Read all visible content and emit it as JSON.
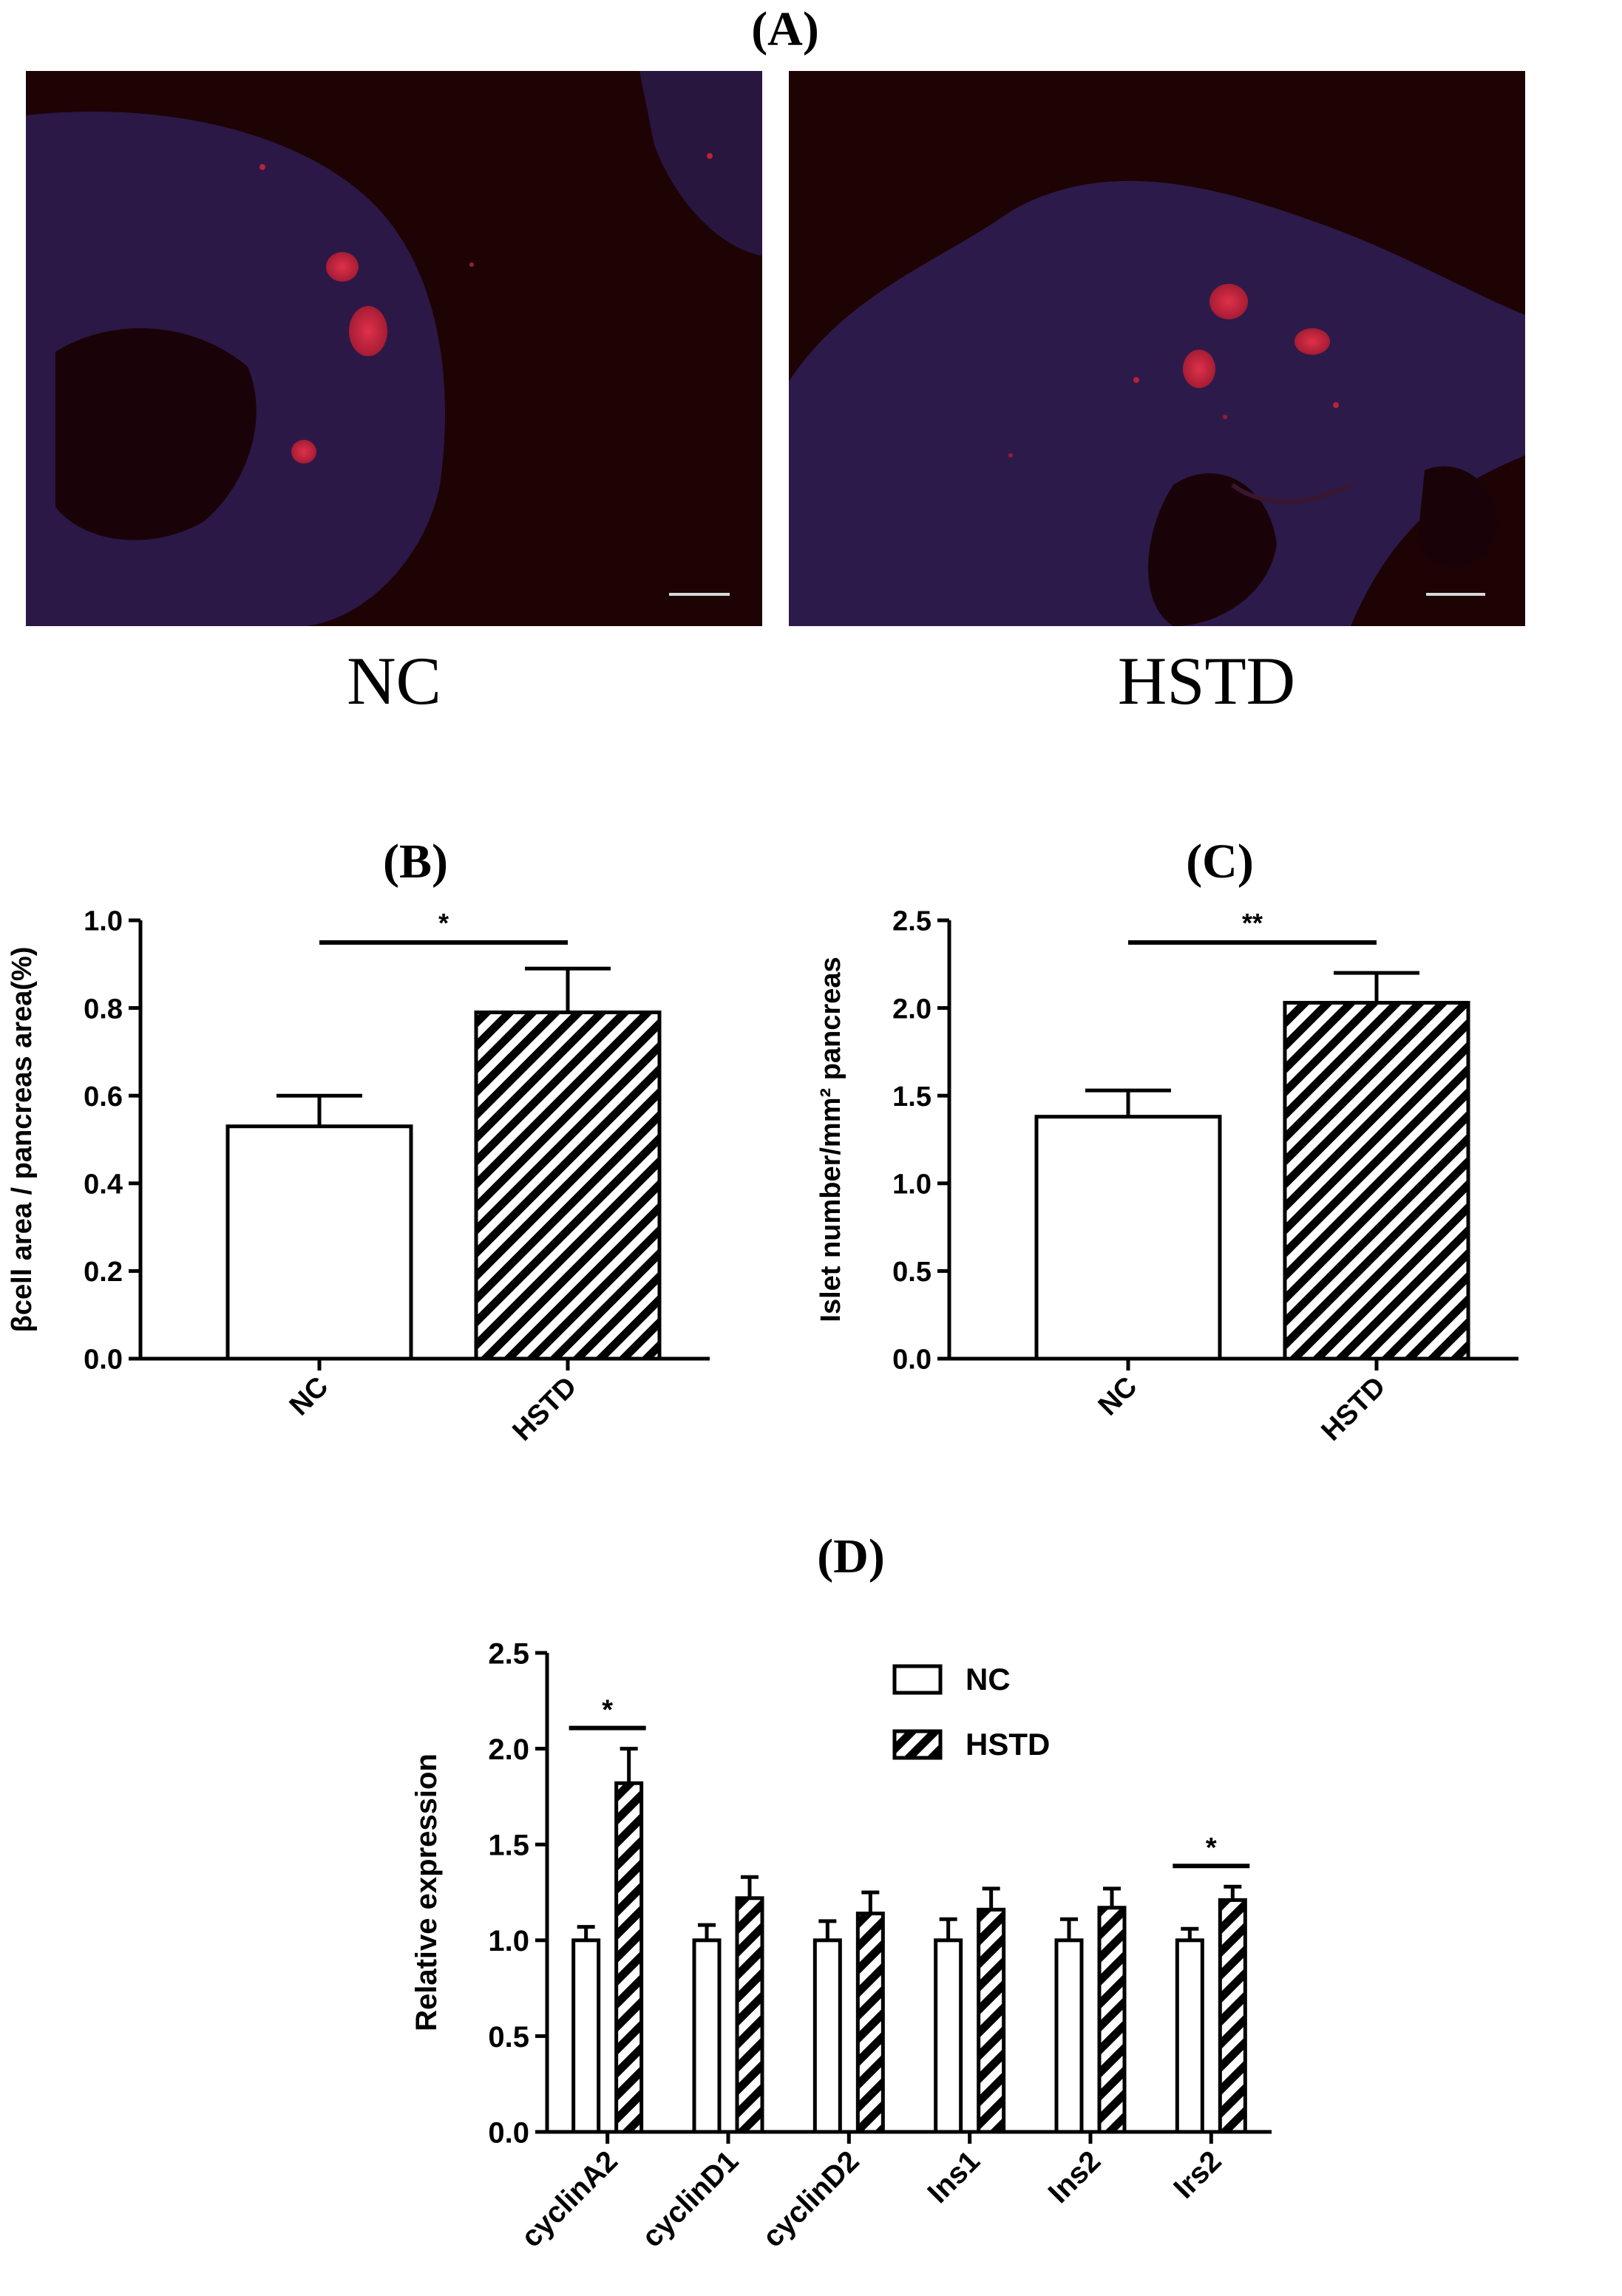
{
  "panel_labels": {
    "a": "(A)",
    "b": "(B)",
    "c": "(C)",
    "d": "(D)"
  },
  "micrographs": [
    {
      "caption": "NC"
    },
    {
      "caption": "HSTD"
    }
  ],
  "colors": {
    "bar_fill": "#ffffff",
    "bar_stroke": "#000000",
    "hatch": "#000000",
    "tissue_blue": "#3a2a6e",
    "islet_red": "#c2263e",
    "background_dark": "#1e0305"
  },
  "chart_data": [
    {
      "panel": "B",
      "type": "bar",
      "categories": [
        "NC",
        "HSTD"
      ],
      "values": [
        0.53,
        0.79
      ],
      "errors": [
        0.07,
        0.1
      ],
      "patterns": [
        "open",
        "hatched"
      ],
      "ylabel": "βcell area / pancreas area(%)",
      "ylim": [
        0,
        1.0
      ],
      "yticks": [
        "0.0",
        "0.2",
        "0.4",
        "0.6",
        "0.8",
        "1.0"
      ],
      "significance": {
        "from": 0,
        "to": 1,
        "label": "*"
      },
      "legend": "none",
      "grid": false
    },
    {
      "panel": "C",
      "type": "bar",
      "categories": [
        "NC",
        "HSTD"
      ],
      "values": [
        1.38,
        2.03
      ],
      "errors": [
        0.15,
        0.17
      ],
      "patterns": [
        "open",
        "hatched"
      ],
      "ylabel": "Islet number/mm² pancreas",
      "ylim": [
        0,
        2.5
      ],
      "yticks": [
        "0.0",
        "0.5",
        "1.0",
        "1.5",
        "2.0",
        "2.5"
      ],
      "significance": {
        "from": 0,
        "to": 1,
        "label": "**"
      },
      "legend": "none",
      "grid": false
    },
    {
      "panel": "D",
      "type": "bar",
      "categories": [
        "cyclinA2",
        "cyclinD1",
        "cyclinD2",
        "Ins1",
        "Ins2",
        "Irs2"
      ],
      "series": [
        {
          "name": "NC",
          "pattern": "open",
          "values": [
            1.0,
            1.0,
            1.0,
            1.0,
            1.0,
            1.0
          ],
          "errors": [
            0.07,
            0.08,
            0.1,
            0.11,
            0.11,
            0.06
          ]
        },
        {
          "name": "HSTD",
          "pattern": "hatched",
          "values": [
            1.82,
            1.22,
            1.14,
            1.16,
            1.17,
            1.21
          ],
          "errors": [
            0.18,
            0.11,
            0.11,
            0.11,
            0.1,
            0.07
          ]
        }
      ],
      "ylabel": "Relative expression",
      "ylim": [
        0,
        2.5
      ],
      "yticks": [
        "0.0",
        "0.5",
        "1.0",
        "1.5",
        "2.0",
        "2.5"
      ],
      "significance": [
        {
          "category": "cyclinA2",
          "label": "*"
        },
        {
          "category": "Irs2",
          "label": "*"
        }
      ],
      "legend": "top-right",
      "grid": false
    }
  ]
}
